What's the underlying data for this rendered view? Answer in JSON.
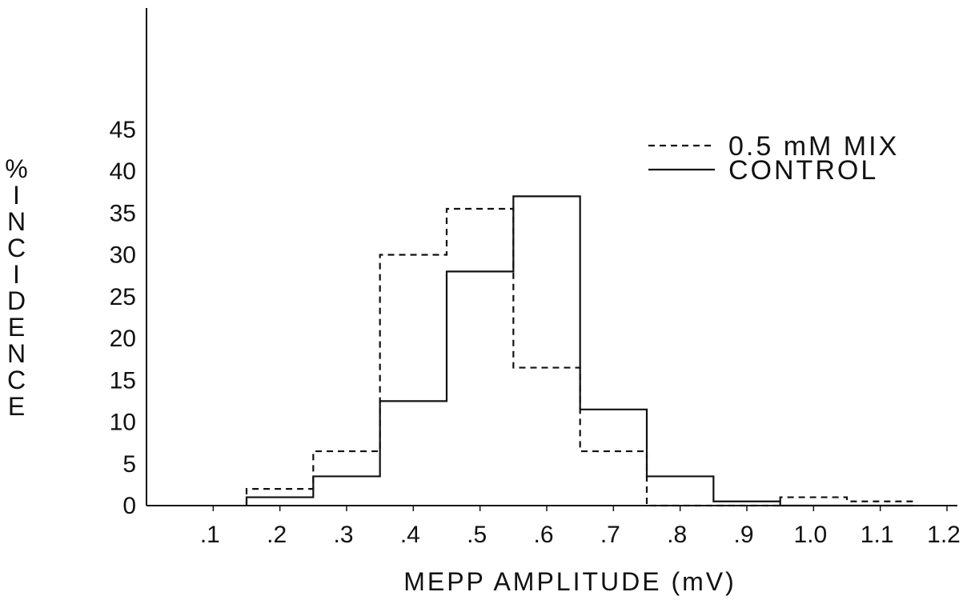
{
  "chart_data": {
    "type": "histogram",
    "title": "",
    "xlabel": "MEPP AMPLITUDE (mV)",
    "ylabel": "% INCIDENCE",
    "xlim": [
      0.0,
      1.2
    ],
    "ylim": [
      0,
      45
    ],
    "grid": false,
    "legend_position": "top-right",
    "x_ticks": [
      {
        "value": 0.1,
        "label": ".1"
      },
      {
        "value": 0.2,
        "label": ".2"
      },
      {
        "value": 0.3,
        "label": ".3"
      },
      {
        "value": 0.4,
        "label": ".4"
      },
      {
        "value": 0.5,
        "label": ".5"
      },
      {
        "value": 0.6,
        "label": ".6"
      },
      {
        "value": 0.7,
        "label": ".7"
      },
      {
        "value": 0.8,
        "label": ".8"
      },
      {
        "value": 0.9,
        "label": ".9"
      },
      {
        "value": 1.0,
        "label": "1.0"
      },
      {
        "value": 1.1,
        "label": "1.1"
      },
      {
        "value": 1.2,
        "label": "1.2"
      }
    ],
    "y_ticks": [
      0,
      5,
      10,
      15,
      20,
      25,
      30,
      35,
      40,
      45
    ],
    "bin_edges": [
      0.15,
      0.25,
      0.35,
      0.45,
      0.55,
      0.65,
      0.75,
      0.85,
      0.95,
      1.05,
      1.15
    ],
    "series": [
      {
        "name": "0.5 mM MIX",
        "style": "dashed",
        "color": "#111111",
        "values": [
          2,
          6.5,
          30,
          35.5,
          16.5,
          6.5,
          0,
          0,
          1,
          0.5
        ]
      },
      {
        "name": "CONTROL",
        "style": "solid",
        "color": "#111111",
        "values": [
          1,
          3.5,
          12.5,
          28,
          37,
          11.5,
          3.5,
          0.5,
          0,
          0
        ]
      }
    ]
  }
}
